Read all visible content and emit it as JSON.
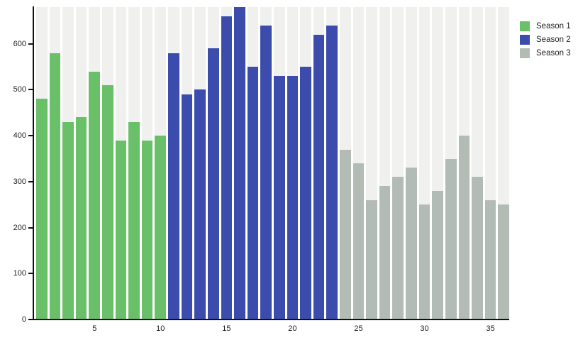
{
  "chart_data": {
    "type": "bar",
    "title": "",
    "xlabel": "",
    "ylabel": "",
    "x_range": [
      1,
      36
    ],
    "ylim": [
      0,
      680
    ],
    "yticks": [
      0,
      100,
      200,
      300,
      400,
      500,
      600
    ],
    "xticks": [
      5,
      10,
      15,
      20,
      25,
      30,
      35
    ],
    "grid": false,
    "legend_position": "top-right-outside",
    "series": [
      {
        "name": "Season 1",
        "color": "#6abf69",
        "x_start": 1,
        "values": [
          480,
          580,
          430,
          440,
          540,
          510,
          390,
          430,
          390,
          400
        ]
      },
      {
        "name": "Season 2",
        "color": "#3b4cad",
        "x_start": 11,
        "values": [
          580,
          490,
          500,
          590,
          660,
          680,
          550,
          640,
          530,
          530,
          550,
          620,
          640
        ]
      },
      {
        "name": "Season 3",
        "color": "#b3bcb4",
        "x_start": 24,
        "values": [
          370,
          340,
          260,
          290,
          310,
          330,
          250,
          280,
          350,
          400,
          310,
          260,
          250
        ]
      }
    ]
  },
  "legend": {
    "items": [
      {
        "label": "Season 1",
        "color": "#6abf69"
      },
      {
        "label": "Season 2",
        "color": "#3b4cad"
      },
      {
        "label": "Season 3",
        "color": "#b3bcb4"
      }
    ]
  },
  "style": {
    "stripe_color": "#f0f0ef",
    "axis_color": "#111111",
    "tick_label_color": "#222222",
    "background": "#ffffff"
  }
}
